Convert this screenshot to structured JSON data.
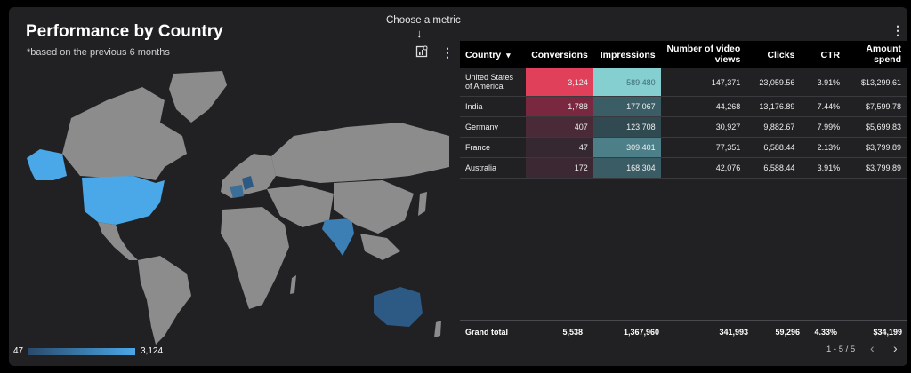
{
  "header": {
    "title": "Performance by Country",
    "subtitle": "*based on the previous 6 months",
    "metric_tip": "Choose a metric",
    "metric_arrow": "↓"
  },
  "legend": {
    "min": "47",
    "max": "3,124"
  },
  "table": {
    "columns": [
      "Country",
      "Conversions",
      "Impressions",
      "Number of video views",
      "Clicks",
      "CTR",
      "Amount spend"
    ],
    "sort_indicator": "▾",
    "rows": [
      {
        "country": "United States of America",
        "conversions": "3,124",
        "impressions": "589,480",
        "video_views": "147,371",
        "clicks": "23,059.56",
        "ctr": "3.91%",
        "spend": "$13,299.61",
        "conv_color": "#e0405a",
        "imp_color": "#86cfd1"
      },
      {
        "country": "India",
        "conversions": "1,788",
        "impressions": "177,067",
        "video_views": "44,268",
        "clicks": "13,176.89",
        "ctr": "7.44%",
        "spend": "$7,599.78",
        "conv_color": "#7a2840",
        "imp_color": "#3b5e66"
      },
      {
        "country": "Germany",
        "conversions": "407",
        "impressions": "123,708",
        "video_views": "30,927",
        "clicks": "9,882.67",
        "ctr": "7.99%",
        "spend": "$5,699.83",
        "conv_color": "#4a2a36",
        "imp_color": "#314a52"
      },
      {
        "country": "France",
        "conversions": "47",
        "impressions": "309,401",
        "video_views": "77,351",
        "clicks": "6,588.44",
        "ctr": "2.13%",
        "spend": "$3,799.89",
        "conv_color": "#352830",
        "imp_color": "#4d7f88"
      },
      {
        "country": "Australia",
        "conversions": "172",
        "impressions": "168,304",
        "video_views": "42,076",
        "clicks": "6,588.44",
        "ctr": "3.91%",
        "spend": "$3,799.89",
        "conv_color": "#3c2832",
        "imp_color": "#3a5c64"
      }
    ],
    "grand_total": {
      "label": "Grand total",
      "conversions": "5,538",
      "impressions": "1,367,960",
      "video_views": "341,993",
      "clicks": "59,296",
      "ctr": "4.33%",
      "spend": "$34,199"
    }
  },
  "pager": {
    "text": "1 - 5 / 5",
    "prev": "‹",
    "next": "›"
  },
  "icons": {
    "kebab": "more-vert-icon",
    "metric": "chart-settings-icon"
  },
  "colors": {
    "card_bg": "#212124",
    "map_land": "#8c8c8c",
    "map_highlight": "#4aa8e8",
    "map_mid": "#2c5a85"
  }
}
